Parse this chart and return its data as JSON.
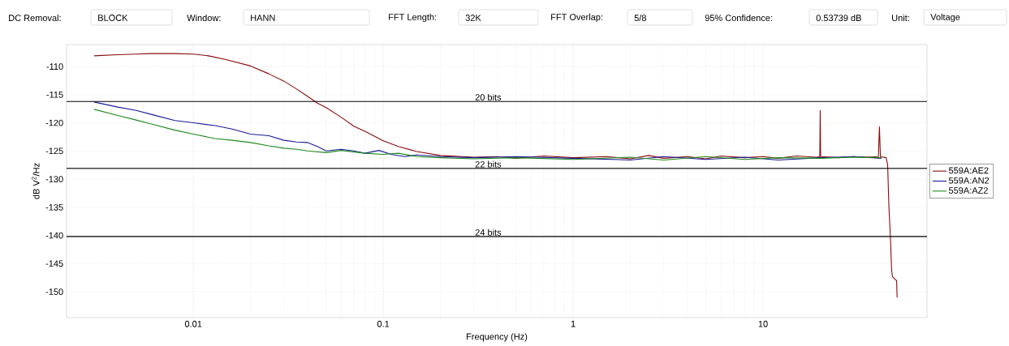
{
  "chart_data": {
    "type": "line",
    "xlabel": "Frequency (Hz)",
    "ylabel": "dB V$^{2}$/Hz",
    "log": "x",
    "grid": true,
    "legend": "right",
    "marker": "none",
    "line_style": "solid",
    "xlim": [
      0.00215,
      73
    ],
    "ylim": [
      -154.6,
      -106.1
    ],
    "xticks": [
      0.01,
      0.1,
      1,
      10
    ],
    "yticks": [
      -150,
      -145,
      -140,
      -135,
      -130,
      -125,
      -120,
      -115,
      -110
    ],
    "series": [
      {
        "name": "559A:AE2",
        "color": "#8b0a0a",
        "x": [
          0.003,
          0.004,
          0.005,
          0.006,
          0.008,
          0.01,
          0.012,
          0.015,
          0.02,
          0.025,
          0.03,
          0.035,
          0.04,
          0.045,
          0.05,
          0.06,
          0.07,
          0.08,
          0.1,
          0.12,
          0.15,
          0.2,
          0.3,
          0.4,
          0.5,
          0.7,
          1,
          1.5,
          2,
          2.5,
          3,
          4,
          5,
          6,
          8,
          10,
          12,
          15,
          19,
          19.9,
          20,
          20.1,
          25,
          30,
          35,
          40.5,
          41,
          41.5,
          44.5,
          45.3,
          46,
          46.8,
          47.5,
          48,
          49.5,
          50.5,
          50.8
        ],
        "values": [
          -108.1,
          -107.9,
          -107.8,
          -107.7,
          -107.7,
          -107.8,
          -108.1,
          -108.8,
          -109.9,
          -111.3,
          -112.6,
          -114,
          -115.3,
          -116.5,
          -117.3,
          -119,
          -120.6,
          -121.5,
          -123.2,
          -124.2,
          -125.1,
          -125.8,
          -126.1,
          -126,
          -126.3,
          -125.9,
          -126.2,
          -126,
          -126.4,
          -125.8,
          -126.3,
          -126,
          -126.4,
          -125.9,
          -126.2,
          -126,
          -126.3,
          -125.9,
          -126.1,
          -126,
          -117.8,
          -126,
          -126.2,
          -126,
          -126.1,
          -126,
          -120.7,
          -126,
          -126.2,
          -127.5,
          -135,
          -140,
          -146,
          -147.3,
          -147.8,
          -148,
          -151
        ]
      },
      {
        "name": "559A:AN2",
        "color": "#1a1a9c",
        "x": [
          0.003,
          0.004,
          0.005,
          0.006,
          0.008,
          0.01,
          0.013,
          0.016,
          0.02,
          0.025,
          0.03,
          0.035,
          0.04,
          0.045,
          0.05,
          0.06,
          0.07,
          0.08,
          0.095,
          0.11,
          0.13,
          0.15,
          0.2,
          0.3,
          0.5,
          1,
          2,
          3,
          5,
          8,
          12,
          20,
          30,
          42
        ],
        "values": [
          -116.3,
          -117.2,
          -117.8,
          -118.5,
          -119.6,
          -120,
          -120.5,
          -121.1,
          -122,
          -122.3,
          -123.1,
          -123.4,
          -123.5,
          -124.2,
          -125,
          -124.7,
          -125,
          -125.4,
          -124.9,
          -125.6,
          -126,
          -125.7,
          -126,
          -126.2,
          -126,
          -126.3,
          -126.6,
          -126,
          -126.5,
          -126.1,
          -126.6,
          -126.2,
          -126,
          -126.3
        ]
      },
      {
        "name": "559A:AZ2",
        "color": "#1e8a1e",
        "x": [
          0.003,
          0.004,
          0.005,
          0.006,
          0.008,
          0.01,
          0.013,
          0.016,
          0.02,
          0.025,
          0.03,
          0.035,
          0.04,
          0.05,
          0.06,
          0.08,
          0.1,
          0.12,
          0.15,
          0.2,
          0.3,
          0.5,
          1,
          2,
          3,
          5,
          8,
          12,
          20,
          30,
          42
        ],
        "values": [
          -117.6,
          -118.7,
          -119.5,
          -120.2,
          -121.3,
          -122,
          -122.8,
          -123.1,
          -123.5,
          -124.1,
          -124.5,
          -124.7,
          -125,
          -125.3,
          -124.9,
          -125.4,
          -125.6,
          -125.4,
          -126,
          -126.2,
          -126.4,
          -126.2,
          -126.5,
          -126.1,
          -126.6,
          -126,
          -126.5,
          -126.2,
          -126.3,
          -126.1,
          -126.2
        ]
      }
    ],
    "ref_lines": [
      {
        "axis": "y",
        "value": -116.2,
        "label": "20 bits",
        "color": "#000000"
      },
      {
        "axis": "y",
        "value": -128.1,
        "label": "22 bits",
        "color": "#000000"
      },
      {
        "axis": "y",
        "value": -140.2,
        "label": "24 bits",
        "color": "#000000"
      }
    ],
    "annotations": [
      "DC Removal:",
      "BLOCK",
      "Window:",
      "HANN",
      "FFT Length:",
      "32K",
      "FFT Overlap:",
      "5/8",
      "95% Confidence:",
      "0.53739 dB",
      "Unit:",
      "Voltage"
    ]
  }
}
